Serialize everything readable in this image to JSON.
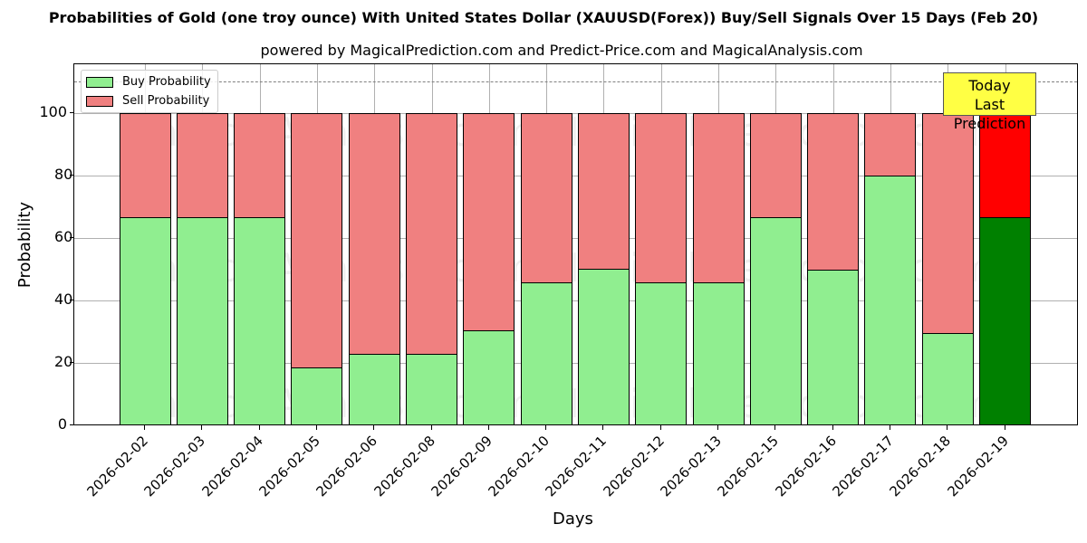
{
  "title": "Probabilities of Gold (one troy ounce) With United States Dollar (XAUUSD(Forex)) Buy/Sell Signals Over 15 Days (Feb 20)",
  "subtitle": "powered by MagicalPrediction.com and Predict-Price.com and MagicalAnalysis.com",
  "legend": {
    "buy": "Buy Probability",
    "sell": "Sell Probability"
  },
  "annotation": {
    "line1": "Today",
    "line2": "Last Prediction"
  },
  "watermarks": [
    "MagicalAnalysis.com",
    "MagicalPrediction.com"
  ],
  "chart_data": {
    "type": "bar",
    "stacked": true,
    "title": "Probabilities of Gold (one troy ounce) With United States Dollar (XAUUSD(Forex)) Buy/Sell Signals Over 15 Days (Feb 20)",
    "subtitle": "powered by MagicalPrediction.com and Predict-Price.com and MagicalAnalysis.com",
    "xlabel": "Days",
    "ylabel": "Probability",
    "ylim": [
      0,
      115
    ],
    "yticks": [
      0,
      20,
      40,
      60,
      80,
      100
    ],
    "grid": true,
    "legend_position": "upper left",
    "reference_line": {
      "y": 110,
      "style": "dashed",
      "color": "#808080"
    },
    "categories": [
      "2026-02-02",
      "2026-02-03",
      "2026-02-04",
      "2026-02-05",
      "2026-02-06",
      "2026-02-08",
      "2026-02-09",
      "2026-02-10",
      "2026-02-11",
      "2026-02-12",
      "2026-02-13",
      "2026-02-15",
      "2026-02-16",
      "2026-02-17",
      "2026-02-18",
      "2026-02-19"
    ],
    "series": [
      {
        "name": "Buy Probability",
        "color": "#90ee90",
        "highlight_color": "#008000",
        "values": [
          66.7,
          66.7,
          66.7,
          18.5,
          23.0,
          23.0,
          30.5,
          45.8,
          50.0,
          45.8,
          45.8,
          66.7,
          49.7,
          80.0,
          29.6,
          66.7
        ]
      },
      {
        "name": "Sell Probability",
        "color": "#f08080",
        "highlight_color": "#ff0000",
        "values": [
          33.3,
          33.3,
          33.3,
          81.5,
          77.0,
          77.0,
          69.5,
          54.2,
          50.0,
          54.2,
          54.2,
          33.3,
          50.3,
          20.0,
          70.4,
          33.3
        ]
      }
    ],
    "highlighted_index": 15
  }
}
